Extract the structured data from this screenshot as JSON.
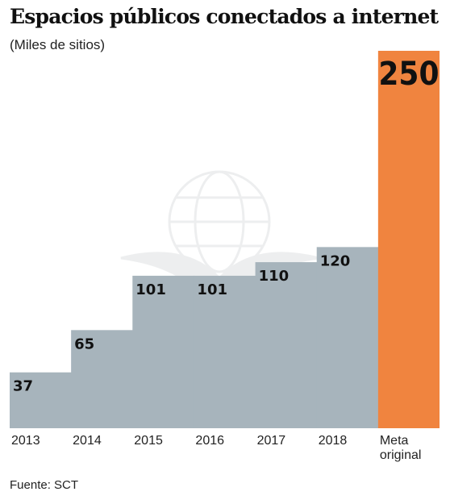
{
  "title": "Espacios públicos conectados a internet",
  "subtitle": "(Miles de sitios)",
  "source": "Fuente: SCT",
  "colors": {
    "steps": "#a7b4bc",
    "goal": "#f0843f",
    "text": "#111111"
  },
  "chart_data": {
    "type": "bar",
    "categories": [
      "2013",
      "2014",
      "2015",
      "2016",
      "2017",
      "2018",
      "Meta original"
    ],
    "values": [
      37,
      65,
      101,
      101,
      110,
      120,
      250
    ],
    "ylim": [
      0,
      250
    ],
    "grid": false,
    "legend": "none"
  }
}
